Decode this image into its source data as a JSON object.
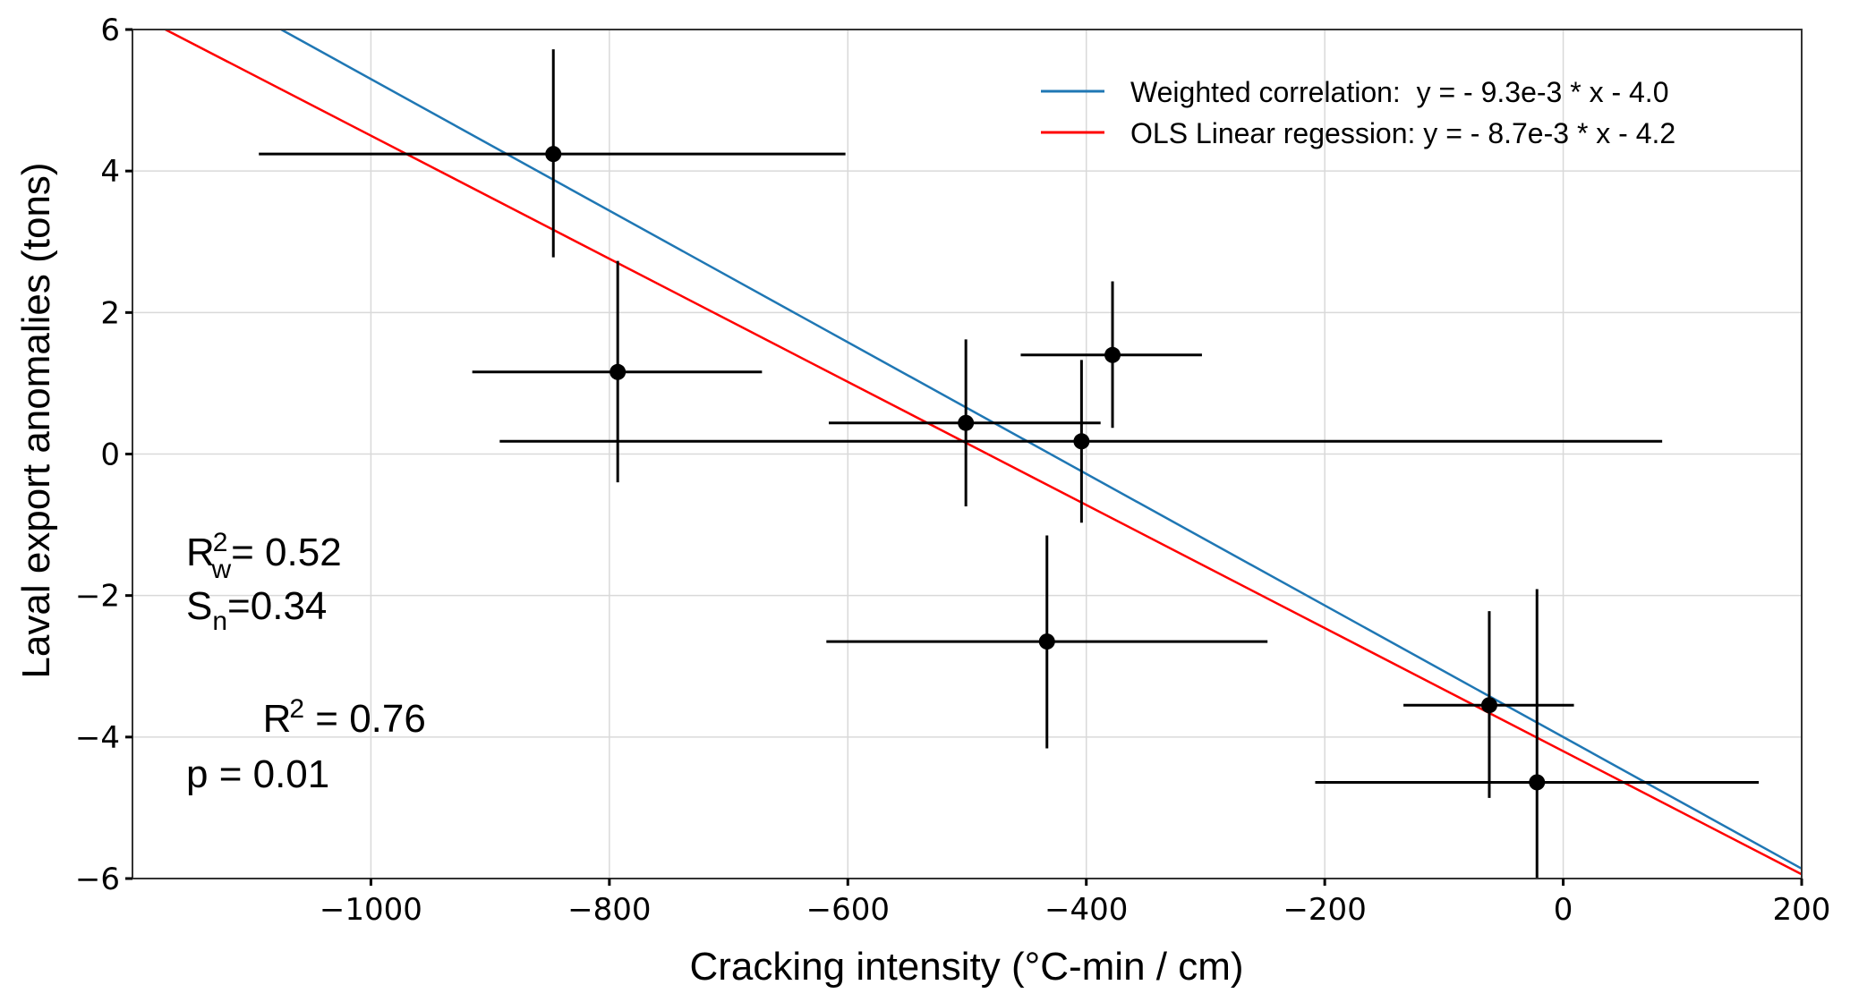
{
  "chart_data": {
    "type": "scatter",
    "title": "",
    "xlabel": "Cracking intensity (°C-min / cm)",
    "ylabel": "Laval export anomalies (tons)",
    "xlim": [
      -1200,
      200
    ],
    "ylim": [
      -6,
      6
    ],
    "xticks": [
      -1000,
      -800,
      -600,
      -400,
      -200,
      0,
      200
    ],
    "xtick_labels": [
      "−1000",
      "−800",
      "−600",
      "−400",
      "−200",
      "0",
      "200"
    ],
    "yticks": [
      6,
      4,
      2,
      0,
      -2,
      -4,
      -6
    ],
    "ytick_labels": [
      "6",
      "4",
      "2",
      "0",
      "−2",
      "−4",
      "−6"
    ],
    "grid": true,
    "points": [
      {
        "x": -847,
        "y": 4.24,
        "xerr": [
          -1094,
          -602
        ],
        "yerr": [
          2.78,
          5.72
        ]
      },
      {
        "x": -793,
        "y": 1.16,
        "xerr": [
          -915,
          -672
        ],
        "yerr": [
          -0.4,
          2.73
        ]
      },
      {
        "x": -501,
        "y": 0.44,
        "xerr": [
          -616,
          -388
        ],
        "yerr": [
          -0.74,
          1.62
        ]
      },
      {
        "x": -378,
        "y": 1.4,
        "xerr": [
          -455,
          -303
        ],
        "yerr": [
          0.37,
          2.44
        ]
      },
      {
        "x": -404,
        "y": 0.18,
        "xerr": [
          -892,
          83
        ],
        "yerr": [
          -0.97,
          1.33
        ]
      },
      {
        "x": -433,
        "y": -2.65,
        "xerr": [
          -618,
          -248
        ],
        "yerr": [
          -4.16,
          -1.15
        ]
      },
      {
        "x": -62,
        "y": -3.55,
        "xerr": [
          -134,
          9
        ],
        "yerr": [
          -4.86,
          -2.22
        ]
      },
      {
        "x": -22,
        "y": -4.64,
        "xerr": [
          -208,
          164
        ],
        "yerr": [
          -6.0,
          -1.91
        ]
      }
    ],
    "series": [
      {
        "name": "Weighted correlation",
        "label": "Weighted correlation:  y = - 9.3e-3 * x - 4.0",
        "slope": -0.0093,
        "intercept": -4.0,
        "color": "#1f77b4"
      },
      {
        "name": "OLS Linear regession",
        "label": "OLS Linear regession: y = - 8.7e-3 * x - 4.2",
        "slope": -0.0087,
        "intercept": -4.2,
        "color": "#ff0000"
      }
    ],
    "legend_position": "top-right",
    "annotations": {
      "rw_label": "R",
      "rw_sup": "2",
      "rw_sub": "w",
      "rw_value": "= 0.52",
      "sn_label": "S",
      "sn_sub": "n",
      "sn_value": "=0.34",
      "r2_label": "R",
      "r2_sup": "2",
      "r2_value": " = 0.76",
      "p_text": "p = 0.01"
    }
  }
}
